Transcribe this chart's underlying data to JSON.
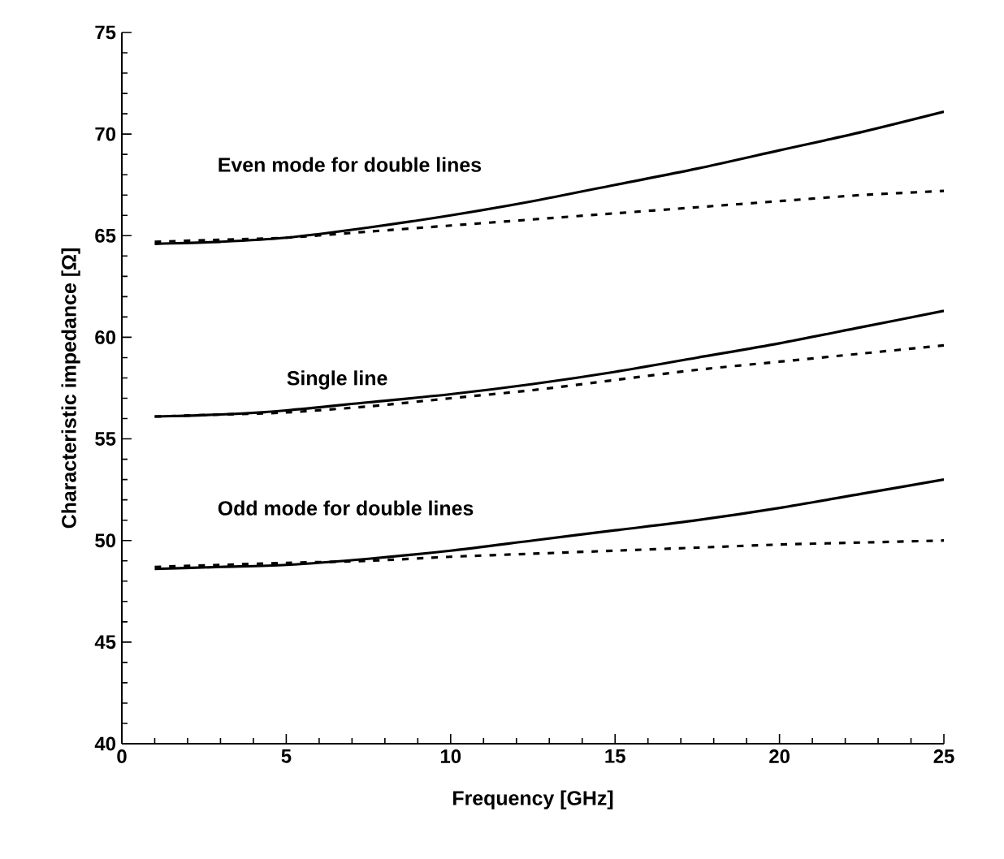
{
  "chart_data": {
    "type": "line",
    "xlabel": "Frequency [GHz]",
    "ylabel": "Characteristic impedance [Ω]",
    "xlim": [
      0,
      25
    ],
    "ylim": [
      40,
      75
    ],
    "xticks": [
      0,
      5,
      10,
      15,
      20,
      25
    ],
    "yticks": [
      40,
      45,
      50,
      55,
      60,
      65,
      70,
      75
    ],
    "marker": "none",
    "x": [
      1,
      3,
      5,
      7.5,
      10,
      12.5,
      15,
      17.5,
      20,
      22.5,
      25
    ],
    "series": [
      {
        "color": "#000000",
        "line_style": "solid",
        "values": [
          64.6,
          64.7,
          64.9,
          65.4,
          66.0,
          66.7,
          67.5,
          68.3,
          69.2,
          70.1,
          71.1
        ]
      },
      {
        "color": "#000000",
        "line_style": "dashed",
        "values": [
          64.7,
          64.8,
          64.9,
          65.2,
          65.5,
          65.8,
          66.1,
          66.4,
          66.7,
          67.0,
          67.2
        ]
      },
      {
        "color": "#000000",
        "line_style": "solid",
        "values": [
          56.1,
          56.2,
          56.4,
          56.8,
          57.2,
          57.7,
          58.3,
          59.0,
          59.7,
          60.5,
          61.3
        ]
      },
      {
        "color": "#000000",
        "line_style": "dashed",
        "values": [
          56.1,
          56.2,
          56.3,
          56.6,
          57.0,
          57.4,
          57.9,
          58.4,
          58.8,
          59.2,
          59.6
        ]
      },
      {
        "color": "#000000",
        "line_style": "solid",
        "values": [
          48.6,
          48.7,
          48.8,
          49.1,
          49.5,
          50.0,
          50.5,
          51.0,
          51.6,
          52.3,
          53.0
        ]
      },
      {
        "color": "#000000",
        "line_style": "dashed",
        "values": [
          48.7,
          48.8,
          48.9,
          49.0,
          49.2,
          49.35,
          49.5,
          49.65,
          49.8,
          49.9,
          50.0
        ]
      }
    ],
    "annotations": [
      "Even mode for double lines",
      "Single line",
      "Odd mode for double lines"
    ]
  }
}
